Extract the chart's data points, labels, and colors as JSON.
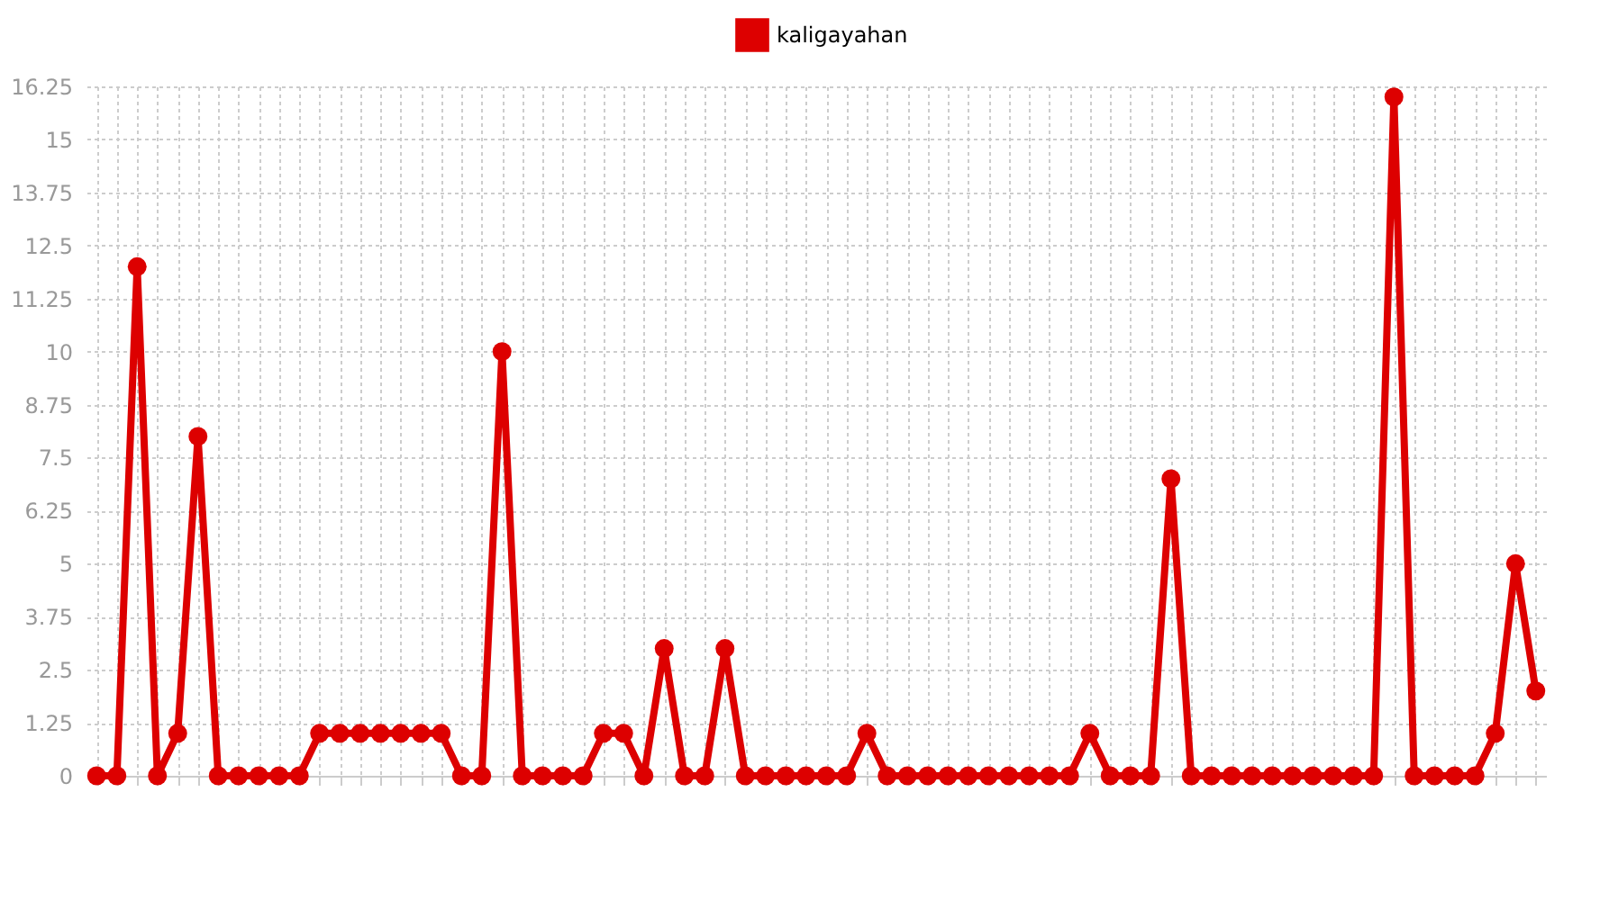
{
  "chart_data": {
    "type": "line",
    "categories": [
      null,
      null,
      null,
      null,
      null,
      null,
      null,
      null,
      null,
      null,
      null,
      null,
      null,
      null,
      null,
      null,
      null,
      null,
      null,
      null,
      null,
      null,
      null,
      null,
      null,
      null,
      null,
      null,
      null,
      null,
      null,
      null,
      null,
      null,
      null,
      null,
      null,
      null,
      null,
      null,
      null,
      null,
      null,
      null,
      null,
      null,
      null,
      null,
      null,
      null,
      null,
      null,
      null,
      null,
      null,
      null,
      null,
      null,
      null,
      null,
      null,
      null,
      null,
      null,
      null,
      null,
      null,
      null,
      null,
      null,
      null,
      null
    ],
    "series": [
      {
        "name": "kaligayahan",
        "color": "#dd0000",
        "values": [
          0,
          0,
          12,
          0,
          1,
          8,
          0,
          0,
          0,
          0,
          0,
          1,
          1,
          1,
          1,
          1,
          1,
          1,
          0,
          0,
          10,
          0,
          0,
          0,
          0,
          1,
          1,
          0,
          3,
          0,
          0,
          3,
          0,
          0,
          0,
          0,
          0,
          0,
          1,
          0,
          0,
          0,
          0,
          0,
          0,
          0,
          0,
          0,
          0,
          1,
          0,
          0,
          0,
          7,
          0,
          0,
          0,
          0,
          0,
          0,
          0,
          0,
          0,
          0,
          16,
          0,
          0,
          0,
          0,
          1,
          5,
          2
        ]
      }
    ],
    "ylim": [
      0,
      16.25
    ],
    "yticks": [
      0,
      1.25,
      2.5,
      3.75,
      5,
      6.25,
      7.5,
      8.75,
      10,
      11.25,
      12.5,
      13.75,
      15,
      16.25
    ],
    "grid": true,
    "legend": "top",
    "marker": "circle",
    "line_style": "solid",
    "tick_labels": "y"
  }
}
